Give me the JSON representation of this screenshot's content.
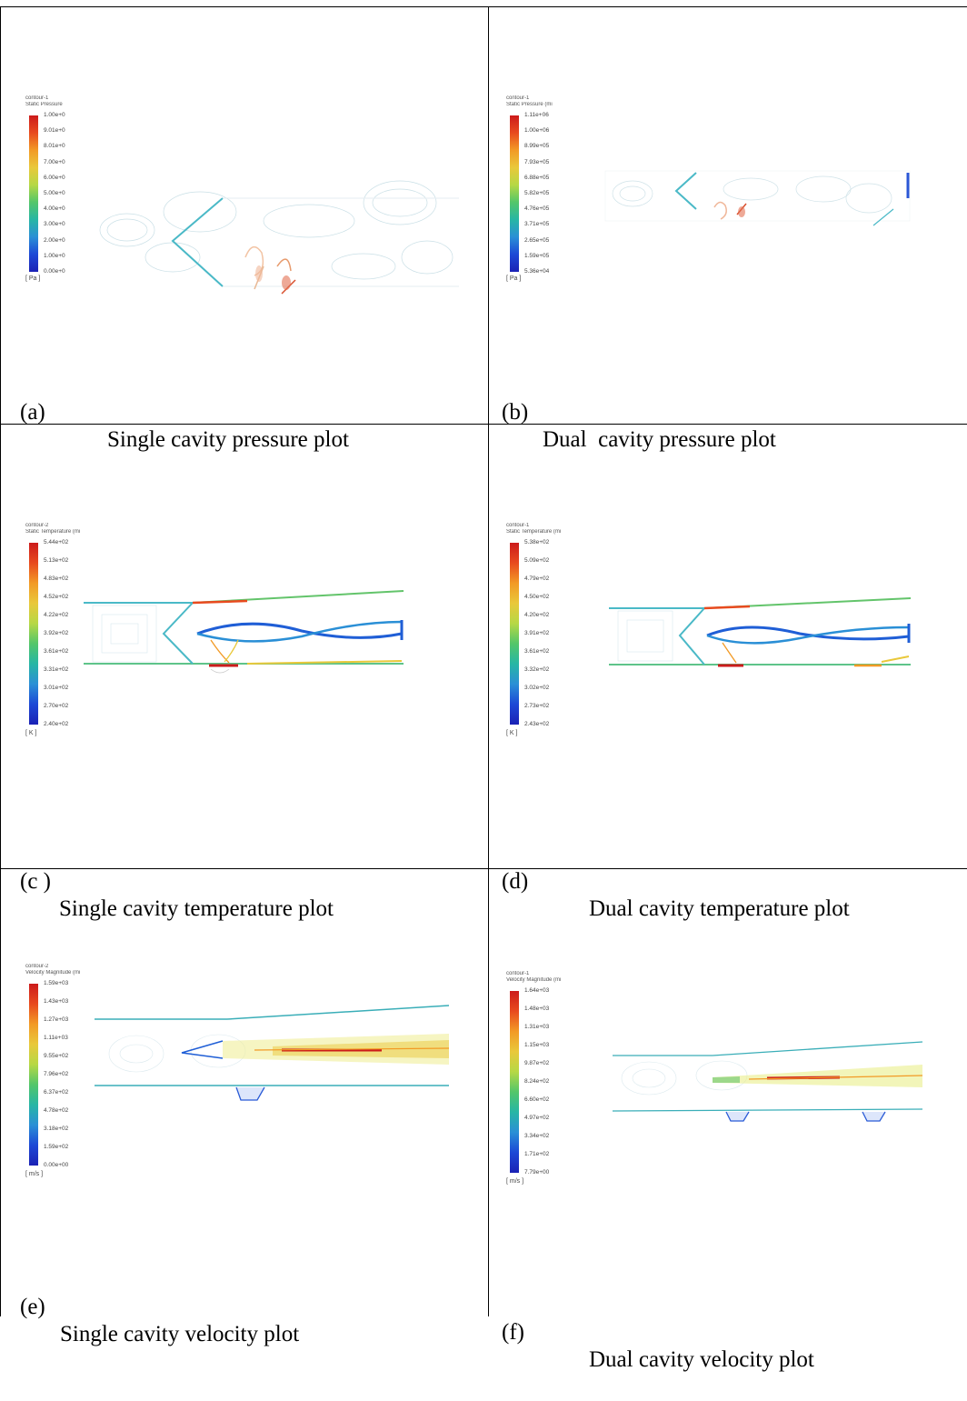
{
  "cells": [
    {
      "id": "a",
      "caption": {
        "letter": "(a)",
        "text": "Single cavity pressure plot"
      },
      "legend": {
        "title_line1": "contour-1",
        "title_line2": "Static Pressure",
        "unit": "[ Pa ]",
        "ticks": [
          "1.00e+0",
          "9.01e+0",
          "8.01e+0",
          "7.00e+0",
          "6.00e+0",
          "5.00e+0",
          "4.00e+0",
          "3.00e+0",
          "2.00e+0",
          "1.00e+0",
          "0.00e+0"
        ]
      }
    },
    {
      "id": "b",
      "caption": {
        "letter": "(b)",
        "text": "Dual  cavity pressure plot"
      },
      "legend": {
        "title_line1": "contour-1",
        "title_line2": "Static Pressure (mi",
        "unit": "[ Pa ]",
        "ticks": [
          "1.11e+06",
          "1.00e+06",
          "8.99e+05",
          "7.93e+05",
          "6.88e+05",
          "5.82e+05",
          "4.76e+05",
          "3.71e+05",
          "2.65e+05",
          "1.59e+05",
          "5.36e+04"
        ]
      }
    },
    {
      "id": "c",
      "caption": {
        "letter": "(c )",
        "text": "Single cavity temperature plot"
      },
      "legend": {
        "title_line1": "contour-2",
        "title_line2": "Static Temperature (mi",
        "unit": "[ K ]",
        "ticks": [
          "5.44e+02",
          "5.13e+02",
          "4.83e+02",
          "4.52e+02",
          "4.22e+02",
          "3.92e+02",
          "3.61e+02",
          "3.31e+02",
          "3.01e+02",
          "2.70e+02",
          "2.40e+02"
        ]
      }
    },
    {
      "id": "d",
      "caption": {
        "letter": "(d)",
        "text": "Dual cavity temperature plot"
      },
      "legend": {
        "title_line1": "contour-1",
        "title_line2": "Static Temperature (mi",
        "unit": "[ K ]",
        "ticks": [
          "5.38e+02",
          "5.09e+02",
          "4.79e+02",
          "4.50e+02",
          "4.20e+02",
          "3.91e+02",
          "3.61e+02",
          "3.32e+02",
          "3.02e+02",
          "2.73e+02",
          "2.43e+02"
        ]
      }
    },
    {
      "id": "e",
      "caption": {
        "letter": "(e)",
        "text": "Single cavity velocity plot"
      },
      "legend": {
        "title_line1": "contour-2",
        "title_line2": "Velocity Magnitude (mi",
        "unit": "[ m/s ]",
        "ticks": [
          "1.59e+03",
          "1.43e+03",
          "1.27e+03",
          "1.11e+03",
          "9.55e+02",
          "7.96e+02",
          "6.37e+02",
          "4.78e+02",
          "3.18e+02",
          "1.59e+02",
          "0.00e+00"
        ]
      }
    },
    {
      "id": "f",
      "caption": {
        "letter": "(f)",
        "text": "Dual cavity velocity plot"
      },
      "legend": {
        "title_line1": "contour-1",
        "title_line2": "Velocity Magnitude (mi",
        "unit": "[ m/s ]",
        "ticks": [
          "1.64e+03",
          "1.48e+03",
          "1.31e+03",
          "1.15e+03",
          "9.87e+02",
          "8.24e+02",
          "6.60e+02",
          "4.97e+02",
          "3.34e+02",
          "1.71e+02",
          "7.79e+00"
        ]
      }
    }
  ]
}
